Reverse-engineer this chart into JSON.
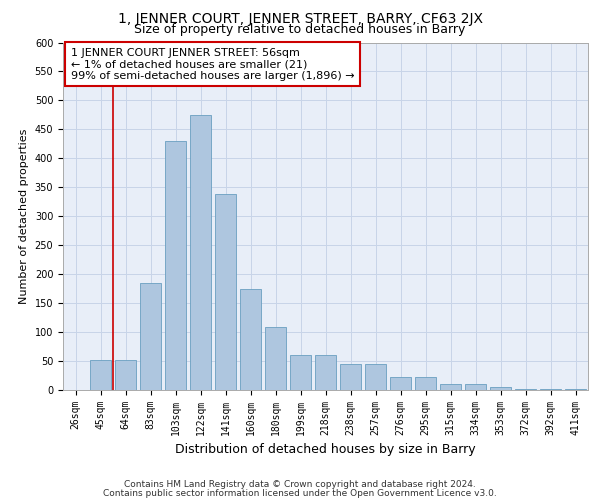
{
  "title1": "1, JENNER COURT, JENNER STREET, BARRY, CF63 2JX",
  "title2": "Size of property relative to detached houses in Barry",
  "xlabel": "Distribution of detached houses by size in Barry",
  "ylabel": "Number of detached properties",
  "categories": [
    "26sqm",
    "45sqm",
    "64sqm",
    "83sqm",
    "103sqm",
    "122sqm",
    "141sqm",
    "160sqm",
    "180sqm",
    "199sqm",
    "218sqm",
    "238sqm",
    "257sqm",
    "276sqm",
    "295sqm",
    "315sqm",
    "334sqm",
    "353sqm",
    "372sqm",
    "392sqm",
    "411sqm"
  ],
  "values": [
    0,
    52,
    52,
    185,
    430,
    475,
    338,
    175,
    108,
    60,
    60,
    45,
    45,
    22,
    22,
    10,
    10,
    5,
    2,
    2,
    2
  ],
  "bar_color": "#aec6df",
  "bar_edge_color": "#6a9fc0",
  "bar_width": 0.85,
  "vline_x": 1.5,
  "vline_color": "#cc0000",
  "annotation_text": "1 JENNER COURT JENNER STREET: 56sqm\n← 1% of detached houses are smaller (21)\n99% of semi-detached houses are larger (1,896) →",
  "annotation_box_color": "#cc0000",
  "ylim": [
    0,
    600
  ],
  "yticks": [
    0,
    50,
    100,
    150,
    200,
    250,
    300,
    350,
    400,
    450,
    500,
    550,
    600
  ],
  "grid_color": "#c8d4e8",
  "background_color": "#e8eef8",
  "footer_line1": "Contains HM Land Registry data © Crown copyright and database right 2024.",
  "footer_line2": "Contains public sector information licensed under the Open Government Licence v3.0.",
  "title1_fontsize": 10,
  "title2_fontsize": 9,
  "xlabel_fontsize": 9,
  "ylabel_fontsize": 8,
  "tick_fontsize": 7,
  "annotation_fontsize": 8,
  "footer_fontsize": 6.5
}
